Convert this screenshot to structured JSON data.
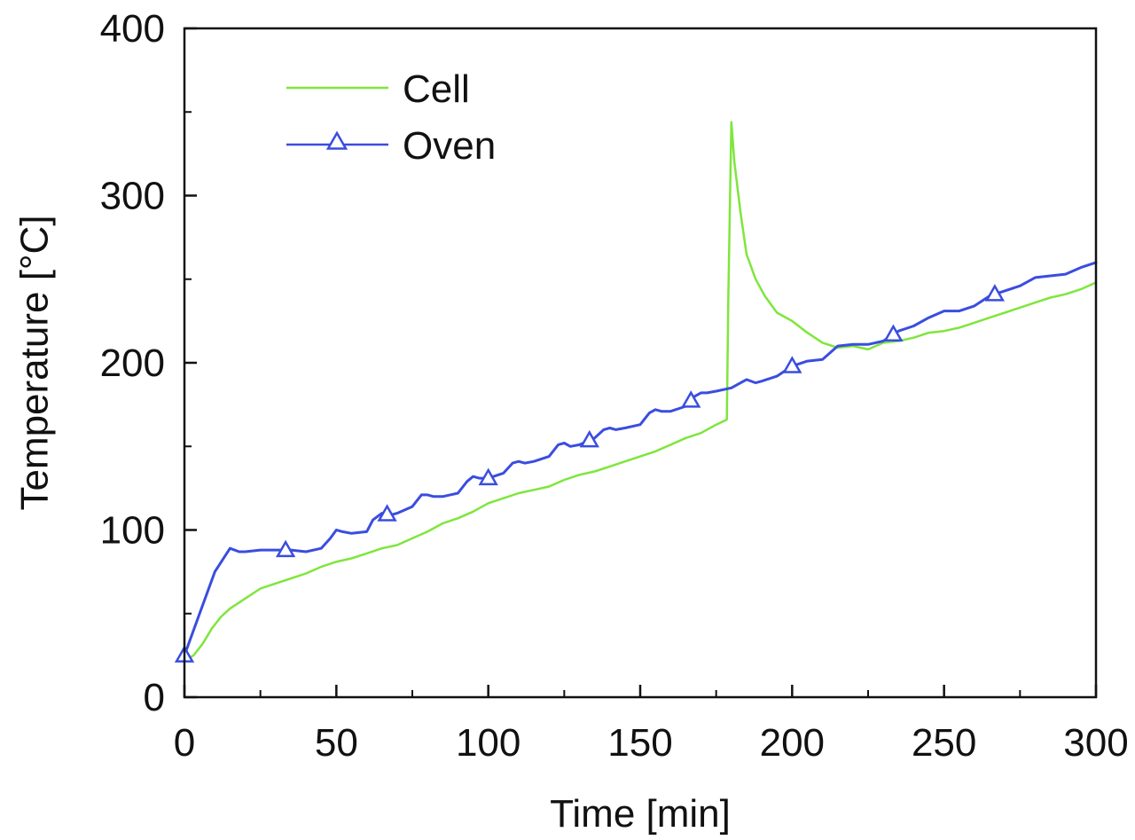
{
  "chart_data": {
    "type": "line",
    "title": "",
    "xlabel": "Time [min]",
    "ylabel": "Temperature [°C]",
    "xlim": [
      0,
      300
    ],
    "ylim": [
      0,
      400
    ],
    "xticks": [
      0,
      50,
      100,
      150,
      200,
      250,
      300
    ],
    "yticks": [
      0,
      100,
      200,
      300,
      400
    ],
    "x_minor_step": 25,
    "y_minor_step": 50,
    "grid": false,
    "legend_position": "top-left",
    "series": [
      {
        "name": "Cell",
        "color": "#7ee63c",
        "marker": "none",
        "x": [
          0,
          3,
          6,
          9,
          12,
          15,
          20,
          25,
          30,
          35,
          40,
          45,
          50,
          55,
          60,
          65,
          70,
          75,
          80,
          85,
          90,
          95,
          100,
          105,
          110,
          115,
          120,
          125,
          130,
          135,
          140,
          145,
          150,
          155,
          160,
          165,
          170,
          175,
          178.5,
          179,
          180,
          181,
          183,
          185,
          188,
          191,
          195,
          200,
          205,
          210,
          215,
          220,
          225,
          230,
          235,
          240,
          245,
          250,
          255,
          260,
          265,
          270,
          275,
          280,
          285,
          290,
          295,
          300
        ],
        "values": [
          22,
          25,
          32,
          41,
          48,
          53,
          59,
          65,
          68,
          71,
          74,
          78,
          81,
          83,
          86,
          89,
          91,
          95,
          99,
          104,
          107,
          111,
          116,
          119,
          122,
          124,
          126,
          130,
          133,
          135,
          138,
          141,
          144,
          147,
          151,
          155,
          158,
          163,
          166,
          240,
          344,
          320,
          290,
          265,
          250,
          240,
          230,
          225,
          218,
          212,
          209,
          210,
          208,
          212,
          213,
          215,
          218,
          219,
          221,
          224,
          227,
          230,
          233,
          236,
          239,
          241,
          244,
          248
        ]
      },
      {
        "name": "Oven",
        "color": "#3a4de0",
        "marker": "triangle",
        "x": [
          0,
          5,
          10,
          15,
          18,
          20,
          25,
          30,
          35,
          40,
          45,
          48,
          50,
          52,
          55,
          60,
          62,
          65,
          68,
          70,
          75,
          78,
          80,
          82,
          85,
          90,
          93,
          95,
          97,
          100,
          105,
          108,
          110,
          112,
          115,
          120,
          123,
          125,
          127,
          130,
          135,
          138,
          140,
          142,
          145,
          150,
          153,
          155,
          157,
          160,
          165,
          168,
          170,
          172,
          175,
          180,
          185,
          188,
          190,
          195,
          200,
          205,
          210,
          215,
          220,
          225,
          230,
          235,
          240,
          245,
          250,
          255,
          260,
          265,
          270,
          275,
          280,
          285,
          290,
          295,
          300
        ],
        "values": [
          25,
          50,
          75,
          89,
          87,
          87,
          88,
          88,
          88,
          87,
          89,
          95,
          100,
          99,
          98,
          99,
          106,
          110,
          109,
          110,
          114,
          121,
          121,
          120,
          120,
          122,
          129,
          132,
          131,
          131,
          134,
          140,
          141,
          140,
          141,
          144,
          151,
          152,
          150,
          151,
          155,
          160,
          161,
          160,
          161,
          163,
          170,
          172,
          171,
          171,
          174,
          180,
          182,
          182,
          183,
          185,
          190,
          188,
          189,
          192,
          198,
          201,
          202,
          210,
          211,
          211,
          213,
          219,
          222,
          227,
          231,
          231,
          234,
          240,
          243,
          246,
          251,
          252,
          253,
          257,
          260
        ]
      }
    ],
    "oven_marker_x": [
      0,
      33.3,
      66.7,
      100,
      133.3,
      166.7,
      200,
      233.3,
      266.7
    ]
  }
}
